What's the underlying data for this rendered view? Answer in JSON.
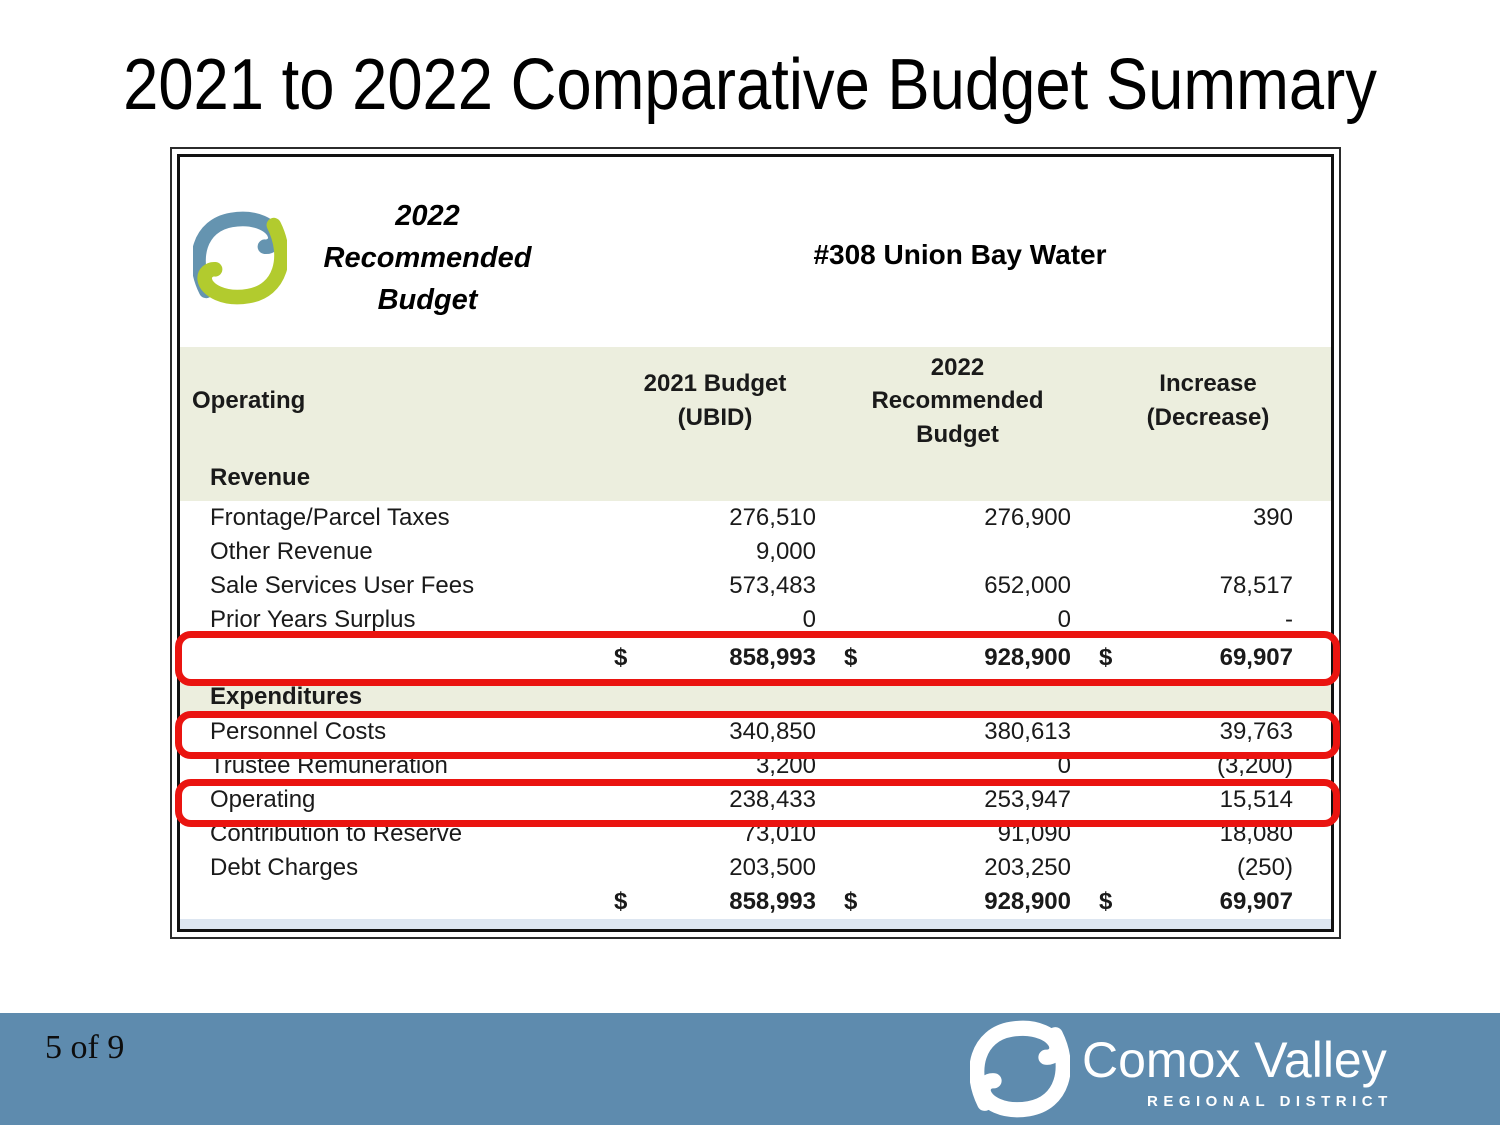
{
  "slide": {
    "title": "2021 to 2022 Comparative Budget Summary"
  },
  "table": {
    "brand_caption": "2022\nRecommended\nBudget",
    "service_title": "#308 Union Bay Water",
    "headers": {
      "operating": "Operating",
      "budget_2021": "2021 Budget\n(UBID)",
      "budget_2022": "2022\nRecommended\nBudget",
      "increase": "Increase\n(Decrease)"
    },
    "revenue_header": "Revenue",
    "rows": [
      {
        "type": "data",
        "label": "Frontage/Parcel Taxes",
        "v2021": "276,510",
        "v2022": "276,900",
        "inc": "390"
      },
      {
        "type": "data",
        "label": "Other Revenue",
        "v2021": "9,000",
        "v2022": "",
        "inc": ""
      },
      {
        "type": "data",
        "label": "Sale Services User Fees",
        "v2021": "573,483",
        "v2022": "652,000",
        "inc": "78,517"
      },
      {
        "type": "data",
        "label": "Prior Years Surplus",
        "v2021": "0",
        "v2022": "0",
        "inc": "-"
      },
      {
        "type": "total",
        "label": "",
        "d1": "$",
        "v2021": "858,993",
        "d2": "$",
        "v2022": "928,900",
        "d3": "$",
        "inc": "69,907"
      },
      {
        "type": "section",
        "label": "Expenditures"
      },
      {
        "type": "data",
        "label": "Personnel Costs",
        "v2021": "340,850",
        "v2022": "380,613",
        "inc": "39,763"
      },
      {
        "type": "data",
        "label": "Trustee Remuneration",
        "v2021": "3,200",
        "v2022": "0",
        "inc": "(3,200)"
      },
      {
        "type": "data",
        "label": "Operating",
        "v2021": "238,433",
        "v2022": "253,947",
        "inc": "15,514"
      },
      {
        "type": "data",
        "label": "Contribution to Reserve",
        "v2021": "73,010",
        "v2022": "91,090",
        "inc": "18,080"
      },
      {
        "type": "data",
        "label": "Debt Charges",
        "v2021": "203,500",
        "v2022": "203,250",
        "inc": "(250)"
      },
      {
        "type": "total",
        "label": "",
        "d1": "$",
        "v2021": "858,993",
        "d2": "$",
        "v2022": "928,900",
        "d3": "$",
        "inc": "69,907"
      }
    ]
  },
  "footer": {
    "page_indicator": "5 of 9",
    "brand_name": "Comox Valley",
    "brand_subtitle": "REGIONAL DISTRICT"
  },
  "colors": {
    "header_band_green": "#eceede",
    "total_strip_blue": "#dde6f1",
    "highlight_red": "#ea1410",
    "footer_blue": "#5e8bae",
    "logo_blue": "#6594b0",
    "logo_green": "#b2cb2e"
  }
}
